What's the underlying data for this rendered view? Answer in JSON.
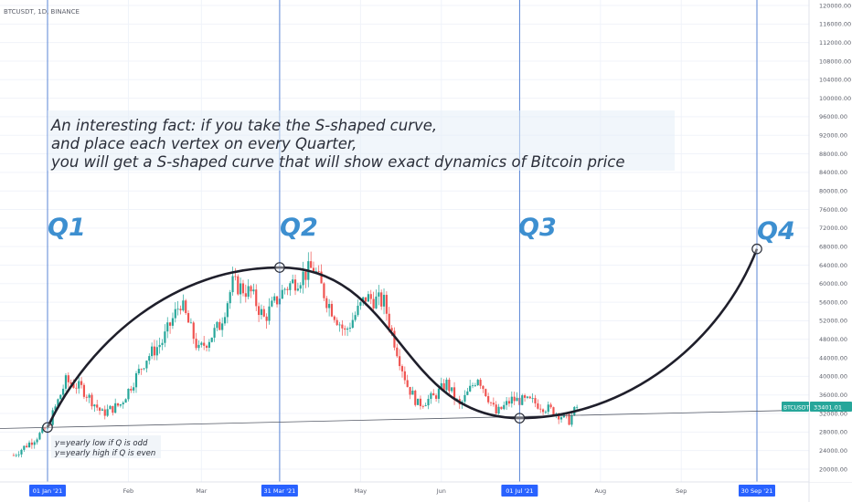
{
  "symbol_label": "BTCUSDT, 1D, BINANCE",
  "annotation_lines": [
    "An interesting fact: if you take the S-shaped curve,",
    "and place each vertex on every Quarter,",
    "you will get a S-shaped curve that will show exact dynamics of Bitcoin price"
  ],
  "note_lines": [
    "y=yearly low if Q is odd",
    "y=yearly high if Q is even"
  ],
  "quarter_labels": [
    "Q1",
    "Q2",
    "Q3",
    "Q4"
  ],
  "price_tag": {
    "symbol": "BTCUSDT",
    "price": "33401.01"
  },
  "colors": {
    "up": "#26a69a",
    "down": "#ef5350",
    "quarter_line": "#4a7ad1",
    "quarter_text": "#3d8fd0",
    "curve": "#1f1f2b",
    "tag_bg": "#26a69a",
    "date_highlight": "#2962ff"
  },
  "chart_data": {
    "type": "candlestick",
    "title": "BTCUSDT, 1D, BINANCE",
    "ylim": [
      16000,
      122000
    ],
    "y_ticks": [
      "120000.00",
      "116000.00",
      "112000.00",
      "108000.00",
      "104000.00",
      "100000.00",
      "96000.00",
      "92000.00",
      "88000.00",
      "84000.00",
      "80000.00",
      "76000.00",
      "72000.00",
      "68000.00",
      "64000.00",
      "60000.00",
      "56000.00",
      "52000.00",
      "48000.00",
      "44000.00",
      "40000.00",
      "36000.00",
      "32000.00",
      "28000.00",
      "24000.00",
      "20000.00"
    ],
    "x_ticks": [
      {
        "label": "01 Jan '21",
        "date": "2021-01-01",
        "highlight": true
      },
      {
        "label": "Feb",
        "date": "2021-02-01",
        "highlight": false
      },
      {
        "label": "Mar",
        "date": "2021-03-01",
        "highlight": false
      },
      {
        "label": "31 Mar '21",
        "date": "2021-03-31",
        "highlight": true
      },
      {
        "label": "May",
        "date": "2021-05-01",
        "highlight": false
      },
      {
        "label": "Jun",
        "date": "2021-06-01",
        "highlight": false
      },
      {
        "label": "01 Jul '21",
        "date": "2021-07-01",
        "highlight": true
      },
      {
        "label": "Aug",
        "date": "2021-08-01",
        "highlight": false
      },
      {
        "label": "Sep",
        "date": "2021-09-01",
        "highlight": false
      },
      {
        "label": "30 Sep '21",
        "date": "2021-09-30",
        "highlight": true
      }
    ],
    "quarter_lines": [
      "2021-01-01",
      "2021-03-31",
      "2021-07-01",
      "2021-09-30"
    ],
    "price_path": {
      "start_date": "2020-12-19",
      "end_date": "2021-07-23",
      "anchors": [
        [
          "2020-12-19",
          23000
        ],
        [
          "2020-12-27",
          26500
        ],
        [
          "2021-01-01",
          29000
        ],
        [
          "2021-01-08",
          39000
        ],
        [
          "2021-01-14",
          37500
        ],
        [
          "2021-01-22",
          32000
        ],
        [
          "2021-01-29",
          34000
        ],
        [
          "2021-02-08",
          44000
        ],
        [
          "2021-02-14",
          47500
        ],
        [
          "2021-02-21",
          56000
        ],
        [
          "2021-02-28",
          45500
        ],
        [
          "2021-03-08",
          51000
        ],
        [
          "2021-03-13",
          60000
        ],
        [
          "2021-03-20",
          58000
        ],
        [
          "2021-03-25",
          52500
        ],
        [
          "2021-04-02",
          59000
        ],
        [
          "2021-04-13",
          63500
        ],
        [
          "2021-04-18",
          56500
        ],
        [
          "2021-04-25",
          49500
        ],
        [
          "2021-05-03",
          57000
        ],
        [
          "2021-05-10",
          56000
        ],
        [
          "2021-05-13",
          49500
        ],
        [
          "2021-05-19",
          38000
        ],
        [
          "2021-05-23",
          34000
        ],
        [
          "2021-05-29",
          35500
        ],
        [
          "2021-06-03",
          38500
        ],
        [
          "2021-06-08",
          33500
        ],
        [
          "2021-06-15",
          40000
        ],
        [
          "2021-06-22",
          32000
        ],
        [
          "2021-06-28",
          35000
        ],
        [
          "2021-07-06",
          34500
        ],
        [
          "2021-07-14",
          32500
        ],
        [
          "2021-07-20",
          30500
        ],
        [
          "2021-07-23",
          33401
        ]
      ]
    },
    "s_curve": [
      {
        "date": "2021-01-01",
        "price": 29000,
        "vertex": true
      },
      {
        "date": "2021-03-31",
        "price": 63500,
        "vertex": true
      },
      {
        "date": "2021-07-01",
        "price": 31000,
        "vertex": true
      },
      {
        "date": "2021-09-30",
        "price": 67500,
        "vertex": true
      }
    ],
    "trendline": [
      {
        "date": "2021-01-01",
        "price": 29000
      },
      {
        "date": "2021-09-30",
        "price": 32500
      }
    ],
    "last_price": 33401.01
  }
}
